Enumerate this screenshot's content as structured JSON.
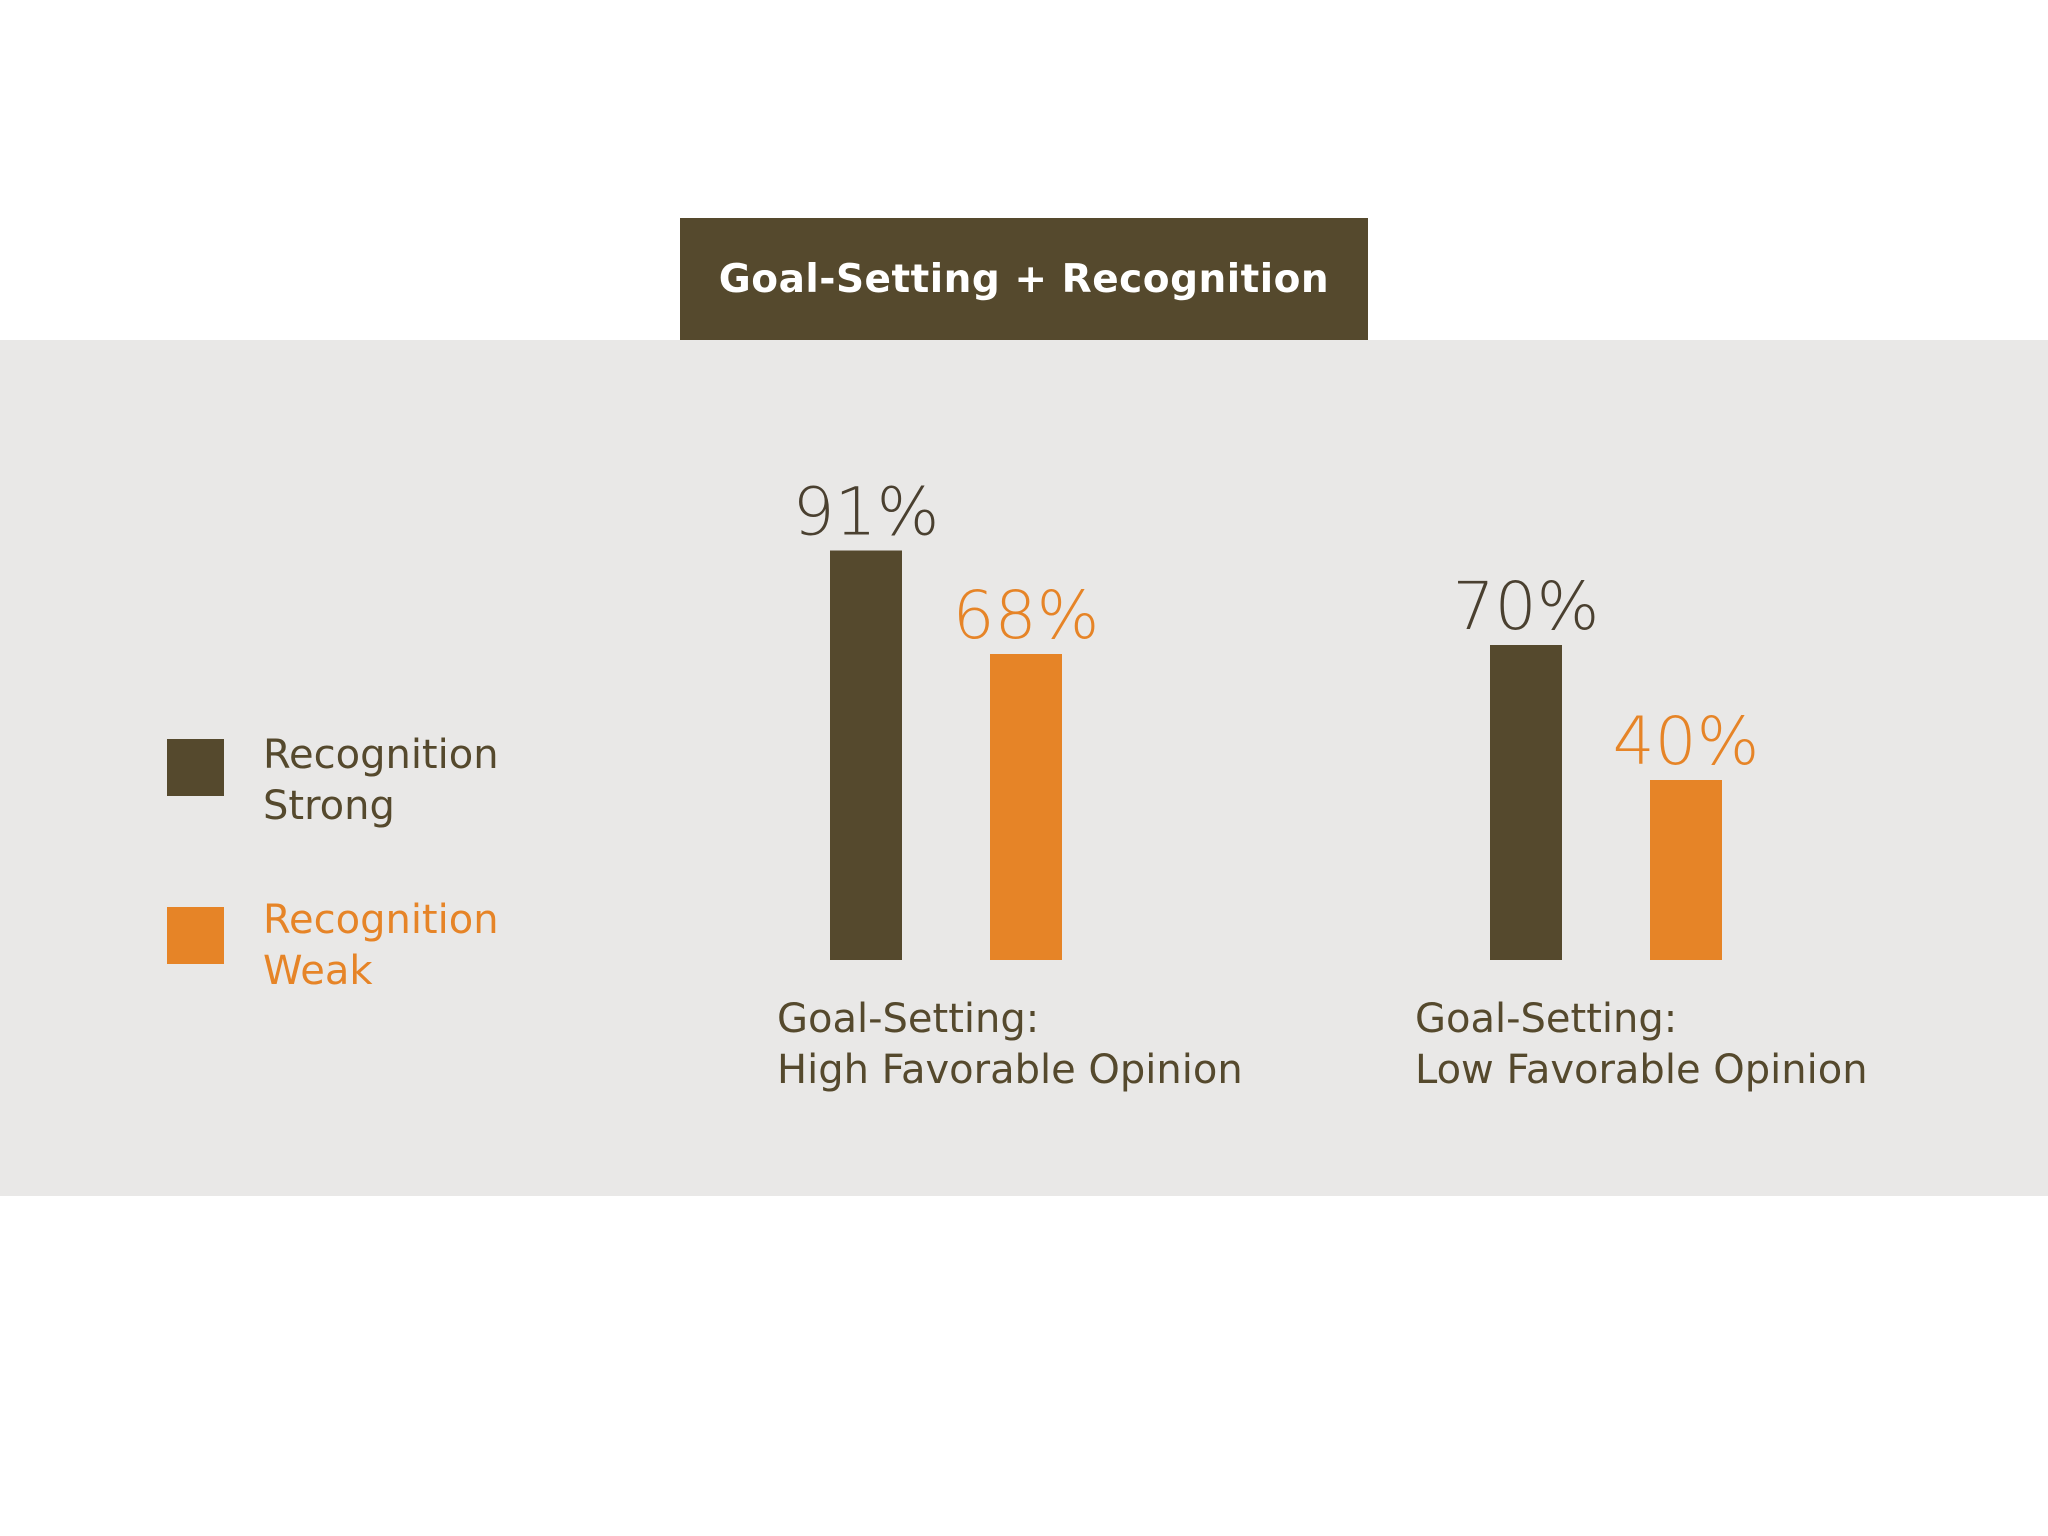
{
  "title": "Goal-Setting + Recognition",
  "colors": {
    "strong": "#55492d",
    "weak": "#e68427",
    "panel": "#e9e8e7",
    "title_bg": "#55492d"
  },
  "legend": [
    {
      "label": "Recognition\nStrong",
      "color": "#55492d"
    },
    {
      "label": "Recognition\nWeak",
      "color": "#e68427"
    }
  ],
  "chart_data": {
    "type": "bar",
    "title": "Goal-Setting + Recognition",
    "categories": [
      "Goal-Setting:\nHigh Favorable Opinion",
      "Goal-Setting:\nLow Favorable Opinion"
    ],
    "series": [
      {
        "name": "Recognition Strong",
        "values": [
          91,
          70
        ],
        "labels": [
          "91%",
          "70%"
        ],
        "color": "#55492d"
      },
      {
        "name": "Recognition Weak",
        "values": [
          68,
          40
        ],
        "labels": [
          "68%",
          "40%"
        ],
        "color": "#e68427"
      }
    ],
    "unit": "%",
    "ylim": [
      0,
      100
    ],
    "grid": false,
    "legend_position": "left"
  }
}
